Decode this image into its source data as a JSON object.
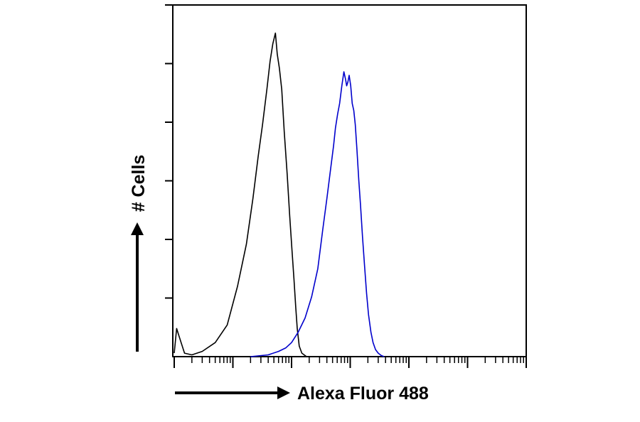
{
  "chart_data": {
    "type": "line",
    "title": "",
    "xlabel": "Alexa Fluor 488",
    "ylabel": "# Cells",
    "x_scale": "log",
    "xlim": [
      1,
      1000000
    ],
    "ylim": [
      0,
      100
    ],
    "grid": false,
    "legend": "none",
    "series": [
      {
        "color": "#000000",
        "points": [
          [
            1.0,
            1
          ],
          [
            1.1,
            8
          ],
          [
            1.2,
            6
          ],
          [
            1.5,
            1
          ],
          [
            2,
            0.5
          ],
          [
            3,
            1.5
          ],
          [
            5,
            4
          ],
          [
            8,
            9
          ],
          [
            12,
            20
          ],
          [
            17,
            32
          ],
          [
            22,
            45
          ],
          [
            27,
            57
          ],
          [
            32,
            66
          ],
          [
            38,
            76
          ],
          [
            43,
            84
          ],
          [
            48,
            89
          ],
          [
            53,
            92
          ],
          [
            57,
            86
          ],
          [
            62,
            82
          ],
          [
            68,
            76
          ],
          [
            75,
            64
          ],
          [
            84,
            52
          ],
          [
            93,
            40
          ],
          [
            102,
            30
          ],
          [
            110,
            22
          ],
          [
            118,
            14
          ],
          [
            125,
            8
          ],
          [
            135,
            3
          ],
          [
            150,
            1
          ],
          [
            180,
            0
          ]
        ]
      },
      {
        "color": "#0000cc",
        "points": [
          [
            20,
            0
          ],
          [
            40,
            0.5
          ],
          [
            60,
            1.5
          ],
          [
            80,
            2.5
          ],
          [
            100,
            4
          ],
          [
            130,
            7
          ],
          [
            170,
            11
          ],
          [
            220,
            17
          ],
          [
            280,
            25
          ],
          [
            340,
            36
          ],
          [
            400,
            45
          ],
          [
            460,
            53
          ],
          [
            520,
            60
          ],
          [
            560,
            65
          ],
          [
            610,
            69
          ],
          [
            660,
            72
          ],
          [
            720,
            77
          ],
          [
            780,
            81
          ],
          [
            830,
            79
          ],
          [
            870,
            77
          ],
          [
            910,
            78
          ],
          [
            960,
            80
          ],
          [
            1020,
            77
          ],
          [
            1080,
            72
          ],
          [
            1150,
            70
          ],
          [
            1220,
            66
          ],
          [
            1300,
            59
          ],
          [
            1400,
            50
          ],
          [
            1500,
            43
          ],
          [
            1620,
            34
          ],
          [
            1750,
            26
          ],
          [
            1900,
            18
          ],
          [
            2050,
            12
          ],
          [
            2250,
            7
          ],
          [
            2450,
            4
          ],
          [
            2700,
            2
          ],
          [
            3000,
            1
          ],
          [
            3400,
            0.3
          ],
          [
            3800,
            0
          ]
        ]
      }
    ]
  }
}
